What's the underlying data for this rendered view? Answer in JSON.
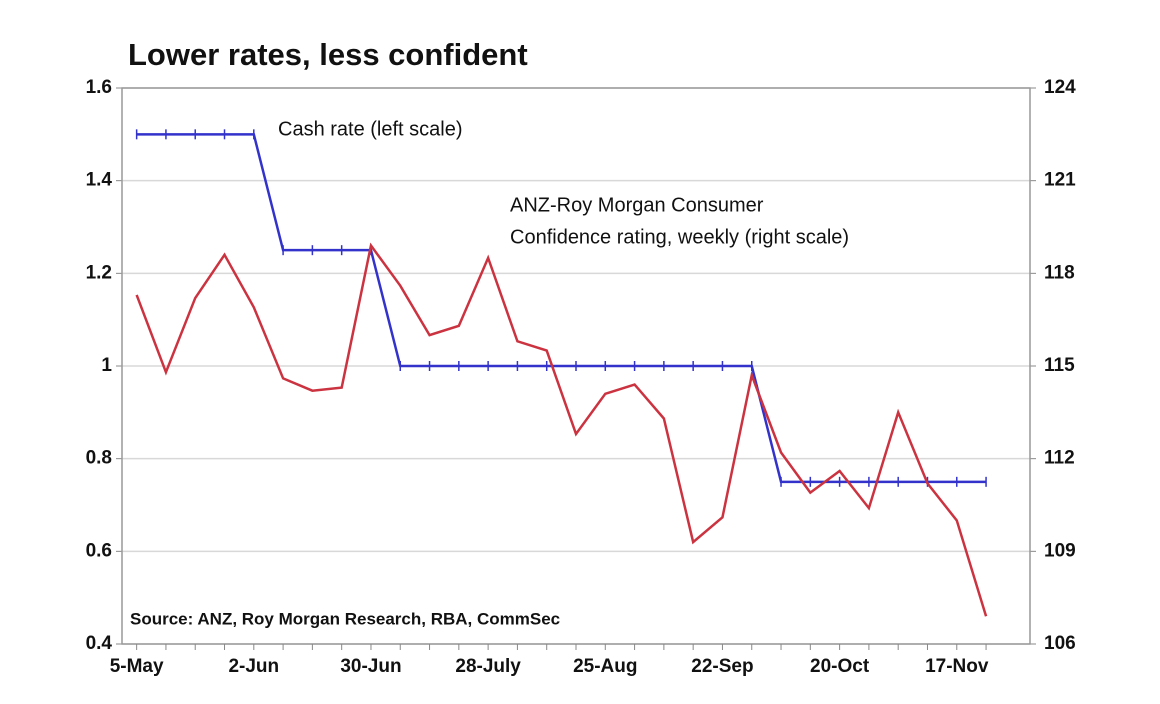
{
  "chart_data": {
    "type": "line",
    "title": "Lower rates, less confident",
    "annotations": [
      "Cash rate (left scale)",
      "ANZ-Roy Morgan Consumer",
      "Confidence rating, weekly (right scale)",
      "Source: ANZ, Roy Morgan Research, RBA, CommSec"
    ],
    "categories": [
      "5-May",
      null,
      null,
      null,
      "2-Jun",
      null,
      null,
      null,
      "30-Jun",
      null,
      null,
      null,
      "28-July",
      null,
      null,
      null,
      "25-Aug",
      null,
      null,
      null,
      "22-Sep",
      null,
      null,
      null,
      "20-Oct",
      null,
      null,
      null,
      "17-Nov",
      null
    ],
    "series": [
      {
        "name": "Cash rate (left scale)",
        "color": "#3333cc",
        "values": [
          1.5,
          1.5,
          1.5,
          1.5,
          1.5,
          1.25,
          1.25,
          1.25,
          1.25,
          1.0,
          1.0,
          1.0,
          1.0,
          1.0,
          1.0,
          1.0,
          1.0,
          1.0,
          1.0,
          1.0,
          1.0,
          1.0,
          0.75,
          0.75,
          0.75,
          0.75,
          0.75,
          0.75,
          0.75,
          0.75
        ]
      },
      {
        "name": "ANZ-Roy Morgan Consumer Confidence rating, weekly (right scale)",
        "color": "#cc3340",
        "axis": "y2",
        "values": [
          117.3,
          114.8,
          117.2,
          118.6,
          116.9,
          114.6,
          114.2,
          114.3,
          118.9,
          117.6,
          116.0,
          116.3,
          118.5,
          115.8,
          115.5,
          112.8,
          114.1,
          114.4,
          113.3,
          109.3,
          110.1,
          114.7,
          112.2,
          110.9,
          111.6,
          110.4,
          113.5,
          111.2,
          110.0,
          106.9
        ]
      }
    ],
    "ylim": [
      0.4,
      1.6
    ],
    "yticks": [
      0.4,
      0.6,
      0.8,
      1,
      1.2,
      1.4,
      1.6
    ],
    "y2lim": [
      106,
      124
    ],
    "y2ticks": [
      106,
      109,
      112,
      115,
      118,
      121,
      124
    ],
    "grid": true
  }
}
